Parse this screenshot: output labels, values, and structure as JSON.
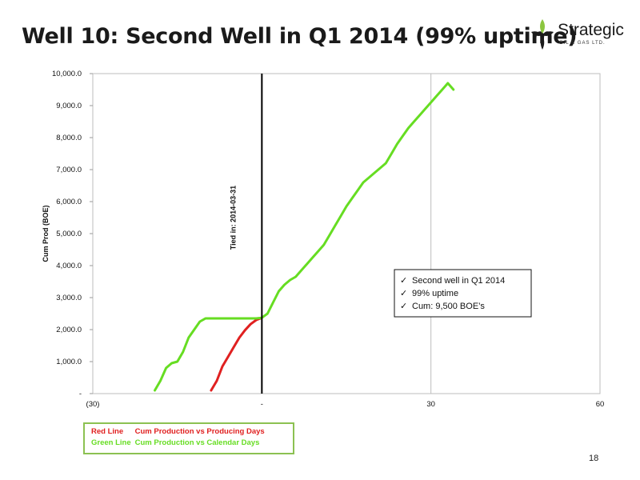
{
  "page": {
    "title": "Well 10: Second Well in Q1 2014 (99% uptime)",
    "page_number": "18"
  },
  "logo": {
    "name": "Strategic",
    "subtitle": "OIL & GAS LTD.",
    "icon": "flame-leaf-icon",
    "colors": [
      "#8cc63f",
      "#1a1a1a"
    ]
  },
  "legend": {
    "red_label": "Red Line",
    "red_text": "Cum Production vs Producing Days",
    "green_label": "Green Line",
    "green_text": "Cum Production vs Calendar Days"
  },
  "chart_data": {
    "type": "line",
    "title": "",
    "xlabel": "",
    "ylabel": "Cum Prod (BOE)",
    "xlim": [
      -30,
      60
    ],
    "ylim": [
      0,
      10000
    ],
    "x_ticks": [
      -30,
      0,
      30,
      60
    ],
    "x_tick_labels": [
      "(30)",
      "-",
      "30",
      "60"
    ],
    "y_ticks": [
      0,
      1000,
      2000,
      3000,
      4000,
      5000,
      6000,
      7000,
      8000,
      9000,
      10000
    ],
    "y_tick_labels": [
      "-",
      "1,000.0",
      "2,000.0",
      "3,000.0",
      "4,000.0",
      "5,000.0",
      "6,000.0",
      "7,000.0",
      "8,000.0",
      "9,000.0",
      "10,000.0"
    ],
    "grid": {
      "vertical": true,
      "horizontal": false
    },
    "legend_position": "bottom-left, outside plot",
    "vline": {
      "x": 0,
      "label": "Tied in: 2014-03-31"
    },
    "annotation_box": {
      "position": "right-middle",
      "items": [
        "Second well in Q1 2014",
        "99% uptime",
        "Cum: 9,500 BOE’s"
      ]
    },
    "series": [
      {
        "color": "#e02020",
        "x": [
          -9,
          -8,
          -7,
          -6,
          -5,
          -4,
          -3,
          -2,
          -1,
          0
        ],
        "y": [
          100,
          400,
          850,
          1150,
          1450,
          1750,
          1980,
          2170,
          2300,
          2370
        ]
      },
      {
        "color": "#66dd22",
        "x": [
          -19,
          -18,
          -17,
          -16,
          -15,
          -14,
          -13,
          -12,
          -11,
          -10,
          -9,
          -8,
          -7,
          -6,
          -5,
          -4,
          -3,
          -2,
          -1,
          0,
          1,
          2,
          3,
          4,
          5,
          6,
          7,
          8,
          9,
          10,
          11,
          12,
          13,
          14,
          15,
          16,
          17,
          18,
          19,
          20,
          21,
          22,
          23,
          24,
          25,
          26,
          27,
          28,
          29,
          30,
          31,
          32,
          33,
          34
        ],
        "y": [
          100,
          400,
          800,
          950,
          1000,
          1300,
          1750,
          2000,
          2250,
          2350,
          2350,
          2350,
          2350,
          2350,
          2350,
          2350,
          2350,
          2350,
          2350,
          2370,
          2500,
          2850,
          3200,
          3400,
          3550,
          3650,
          3850,
          4050,
          4250,
          4450,
          4650,
          4950,
          5250,
          5550,
          5850,
          6100,
          6350,
          6600,
          6750,
          6900,
          7050,
          7200,
          7500,
          7800,
          8050,
          8300,
          8500,
          8700,
          8900,
          9100,
          9300,
          9500,
          9700,
          9500
        ]
      }
    ]
  }
}
